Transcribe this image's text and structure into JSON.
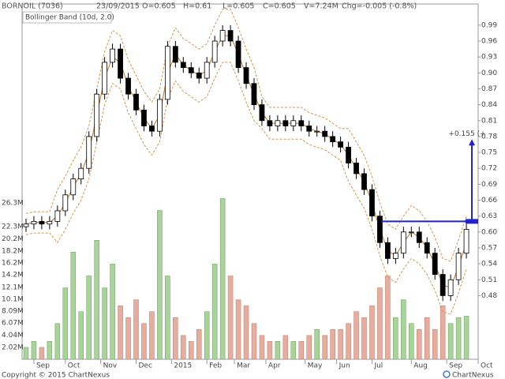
{
  "header": {
    "symbol": "BORNOIL (7036)",
    "date": "23/09/2015",
    "open": "O=0.605",
    "high": "H=0.61",
    "low": "L=0.605",
    "close": "C=0.605",
    "volume": "V=7.24M",
    "change": "Chg=-0.005 (-0.8%)"
  },
  "footer": {
    "copyright": "Copyright © 2015 ChartNexus",
    "brand": "ChartNexus"
  },
  "chart_data": {
    "type": "candlestick",
    "x": [
      0,
      1,
      2,
      3,
      4,
      5,
      6,
      7,
      8,
      9,
      10,
      11,
      12,
      13,
      14,
      15,
      16,
      17,
      18,
      19,
      20,
      21,
      22,
      23,
      24,
      25,
      26,
      27,
      28,
      29,
      30,
      31,
      32,
      33,
      34,
      35,
      36,
      37,
      38,
      39,
      40,
      41,
      42,
      43,
      44,
      45,
      46,
      47,
      48,
      49,
      50,
      51,
      52,
      53,
      54,
      55,
      56
    ],
    "xlim": [
      -0.5,
      57.5
    ],
    "xticks": [
      {
        "value": 1,
        "label": "Sep"
      },
      {
        "value": 5,
        "label": "Oct"
      },
      {
        "value": 9.5,
        "label": "Nov"
      },
      {
        "value": 14,
        "label": "Dec"
      },
      {
        "value": 18.5,
        "label": "2015"
      },
      {
        "value": 23,
        "label": "Feb"
      },
      {
        "value": 26.5,
        "label": "Mar"
      },
      {
        "value": 30.5,
        "label": "Apr"
      },
      {
        "value": 35.5,
        "label": "May"
      },
      {
        "value": 39.5,
        "label": "Jun"
      },
      {
        "value": 44,
        "label": "Jul"
      },
      {
        "value": 49,
        "label": "Aug"
      },
      {
        "value": 53.5,
        "label": "Sep"
      },
      {
        "value": 57.5,
        "label": "Oct"
      }
    ],
    "open": [
      0.61,
      0.615,
      0.62,
      0.615,
      0.62,
      0.64,
      0.67,
      0.7,
      0.72,
      0.78,
      0.86,
      0.92,
      0.945,
      0.89,
      0.86,
      0.83,
      0.8,
      0.79,
      0.85,
      0.95,
      0.92,
      0.91,
      0.9,
      0.89,
      0.92,
      0.96,
      0.98,
      0.96,
      0.91,
      0.88,
      0.84,
      0.81,
      0.8,
      0.81,
      0.8,
      0.81,
      0.8,
      0.79,
      0.79,
      0.78,
      0.77,
      0.76,
      0.73,
      0.71,
      0.68,
      0.63,
      0.58,
      0.55,
      0.56,
      0.6,
      0.6,
      0.58,
      0.56,
      0.52,
      0.48,
      0.51,
      0.56
    ],
    "high": [
      0.625,
      0.63,
      0.63,
      0.63,
      0.65,
      0.68,
      0.71,
      0.73,
      0.79,
      0.87,
      0.93,
      0.955,
      0.955,
      0.9,
      0.87,
      0.84,
      0.81,
      0.86,
      0.96,
      0.96,
      0.93,
      0.92,
      0.91,
      0.93,
      0.97,
      0.99,
      0.99,
      0.97,
      0.92,
      0.89,
      0.85,
      0.82,
      0.82,
      0.82,
      0.82,
      0.82,
      0.81,
      0.8,
      0.8,
      0.79,
      0.78,
      0.77,
      0.74,
      0.72,
      0.69,
      0.64,
      0.59,
      0.57,
      0.61,
      0.61,
      0.61,
      0.59,
      0.57,
      0.53,
      0.52,
      0.57,
      0.615
    ],
    "low": [
      0.6,
      0.605,
      0.605,
      0.605,
      0.61,
      0.63,
      0.66,
      0.69,
      0.71,
      0.77,
      0.85,
      0.91,
      0.88,
      0.85,
      0.82,
      0.79,
      0.78,
      0.78,
      0.84,
      0.91,
      0.9,
      0.89,
      0.88,
      0.88,
      0.91,
      0.95,
      0.95,
      0.9,
      0.87,
      0.83,
      0.8,
      0.79,
      0.79,
      0.79,
      0.79,
      0.79,
      0.78,
      0.78,
      0.77,
      0.76,
      0.75,
      0.72,
      0.7,
      0.67,
      0.62,
      0.57,
      0.54,
      0.54,
      0.55,
      0.59,
      0.57,
      0.55,
      0.51,
      0.47,
      0.47,
      0.5,
      0.55
    ],
    "close": [
      0.615,
      0.62,
      0.615,
      0.62,
      0.64,
      0.67,
      0.7,
      0.72,
      0.78,
      0.86,
      0.92,
      0.945,
      0.89,
      0.86,
      0.83,
      0.8,
      0.79,
      0.85,
      0.95,
      0.92,
      0.91,
      0.9,
      0.89,
      0.92,
      0.96,
      0.98,
      0.96,
      0.91,
      0.88,
      0.84,
      0.81,
      0.8,
      0.81,
      0.8,
      0.81,
      0.8,
      0.79,
      0.79,
      0.78,
      0.77,
      0.76,
      0.73,
      0.71,
      0.68,
      0.63,
      0.58,
      0.55,
      0.56,
      0.6,
      0.6,
      0.58,
      0.56,
      0.52,
      0.48,
      0.51,
      0.56,
      0.605
    ],
    "up_color": "#ffffff",
    "down_color": "#000000",
    "candle_edge": "#000000",
    "ylim": [
      0.36,
      1.03
    ],
    "yticks": [
      0.99,
      0.96,
      0.93,
      {
        "value": 0.9,
        "label": "0.90"
      },
      0.87,
      0.84,
      0.81,
      0.78,
      0.75,
      0.72,
      0.69,
      0.66,
      0.63,
      {
        "value": 0.6,
        "label": "0.60"
      },
      0.57,
      0.54,
      0.51,
      0.48
    ],
    "bollinger": {
      "label": "Bollinger Band (10d, 2.0)",
      "middle_color": "#b8742a",
      "band_color": "#d9944a",
      "middle": [
        0.615,
        0.618,
        0.618,
        0.618,
        0.63,
        0.655,
        0.685,
        0.71,
        0.75,
        0.82,
        0.89,
        0.93,
        0.92,
        0.875,
        0.845,
        0.815,
        0.795,
        0.82,
        0.9,
        0.935,
        0.915,
        0.905,
        0.895,
        0.905,
        0.94,
        0.97,
        0.97,
        0.935,
        0.895,
        0.86,
        0.825,
        0.805,
        0.805,
        0.805,
        0.805,
        0.805,
        0.795,
        0.79,
        0.785,
        0.775,
        0.765,
        0.745,
        0.72,
        0.695,
        0.655,
        0.605,
        0.565,
        0.555,
        0.58,
        0.6,
        0.59,
        0.57,
        0.54,
        0.5,
        0.495,
        0.535,
        0.58
      ],
      "upper": [
        0.635,
        0.638,
        0.638,
        0.638,
        0.68,
        0.705,
        0.735,
        0.76,
        0.8,
        0.87,
        0.94,
        0.98,
        0.97,
        0.925,
        0.895,
        0.865,
        0.845,
        0.87,
        0.95,
        0.985,
        0.965,
        0.955,
        0.945,
        0.955,
        0.99,
        1.02,
        1.02,
        0.985,
        0.945,
        0.91,
        0.855,
        0.835,
        0.835,
        0.835,
        0.835,
        0.835,
        0.825,
        0.82,
        0.815,
        0.805,
        0.795,
        0.795,
        0.77,
        0.745,
        0.705,
        0.655,
        0.615,
        0.605,
        0.63,
        0.65,
        0.64,
        0.62,
        0.59,
        0.55,
        0.545,
        0.585,
        0.63
      ],
      "lower": [
        0.595,
        0.598,
        0.598,
        0.598,
        0.58,
        0.605,
        0.635,
        0.66,
        0.7,
        0.77,
        0.84,
        0.88,
        0.87,
        0.825,
        0.795,
        0.765,
        0.745,
        0.77,
        0.85,
        0.885,
        0.865,
        0.855,
        0.845,
        0.855,
        0.89,
        0.92,
        0.92,
        0.885,
        0.845,
        0.81,
        0.795,
        0.775,
        0.775,
        0.775,
        0.775,
        0.775,
        0.765,
        0.76,
        0.755,
        0.745,
        0.735,
        0.695,
        0.67,
        0.645,
        0.605,
        0.555,
        0.515,
        0.505,
        0.53,
        0.55,
        0.54,
        0.52,
        0.49,
        0.45,
        0.445,
        0.485,
        0.53
      ]
    },
    "volume": {
      "values": [
        2,
        3,
        2,
        3,
        6,
        12,
        18,
        8,
        14,
        20,
        12,
        16,
        9,
        7,
        10,
        6,
        8,
        25,
        14,
        7,
        4,
        3,
        5,
        8,
        16,
        27,
        14,
        10,
        9,
        6,
        4,
        3,
        3,
        4,
        3,
        3,
        4,
        5,
        4,
        5,
        5,
        6,
        8,
        7,
        9,
        12,
        14,
        7,
        10,
        6,
        5,
        7,
        5,
        9,
        6,
        7,
        7.24
      ],
      "ylim": [
        0,
        59.7
      ],
      "yticks": [
        {
          "value": 2.02,
          "label": "2.02M"
        },
        {
          "value": 4.04,
          "label": "4.04M"
        },
        {
          "value": 6.07,
          "label": "6.07M"
        },
        {
          "value": 8.09,
          "label": "8.09M"
        },
        {
          "value": 10.1,
          "label": "10.1M"
        },
        {
          "value": 12.1,
          "label": "12.1M"
        },
        {
          "value": 14.2,
          "label": "14.2M"
        },
        {
          "value": 16.2,
          "label": "16.2M"
        },
        {
          "value": 18.2,
          "label": "18.2M"
        },
        {
          "value": 20.2,
          "label": "20.2M"
        },
        {
          "value": 22.3,
          "label": "22.3M"
        },
        {
          "value": 26.3,
          "label": "26.3M"
        }
      ],
      "up_color": "#a8d49a",
      "down_color": "#e6ad9e"
    },
    "annotation": {
      "text": "+0.155 (+",
      "level": 0.62,
      "from": 0.62,
      "to": 0.775,
      "x_start": 45.2,
      "x_end": 56.7,
      "color": "#2222cc"
    }
  }
}
